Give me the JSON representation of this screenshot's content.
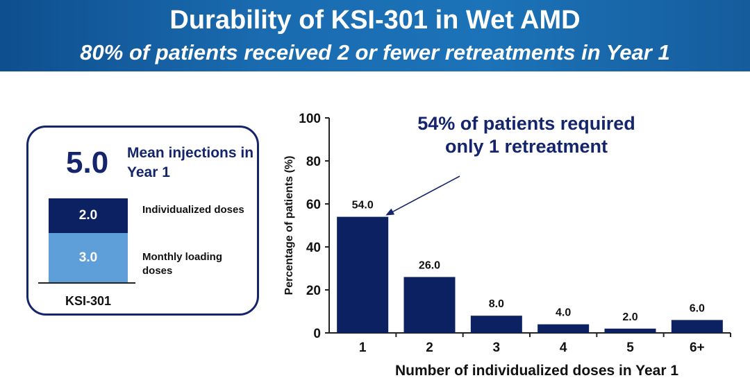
{
  "header": {
    "title": "Durability of KSI-301 in Wet AMD",
    "subtitle": "80% of patients received 2 or fewer retreatments in Year 1"
  },
  "summary_panel": {
    "mean_value": "5.0",
    "mean_label": "Mean injections in Year 1",
    "stack": {
      "category": "KSI-301",
      "segments": [
        {
          "value": "2.0",
          "label": "Individualized doses",
          "color": "#0b2161"
        },
        {
          "value": "3.0",
          "label": "Monthly loading doses",
          "color": "#5f9fd9"
        }
      ]
    }
  },
  "callout": "54% of patients required only 1 retreatment",
  "chart_data": {
    "type": "bar",
    "categories": [
      "1",
      "2",
      "3",
      "4",
      "5",
      "6+"
    ],
    "values": [
      54.0,
      26.0,
      8.0,
      4.0,
      2.0,
      6.0
    ],
    "data_labels": [
      "54.0",
      "26.0",
      "8.0",
      "4.0",
      "2.0",
      "6.0"
    ],
    "xlabel": "Number of individualized doses in Year 1",
    "ylabel": "Percentage of patients (%)",
    "ylim": [
      0,
      100
    ],
    "yticks": [
      0,
      20,
      40,
      60,
      80,
      100
    ],
    "grid": false,
    "bar_color": "#0b2161"
  }
}
